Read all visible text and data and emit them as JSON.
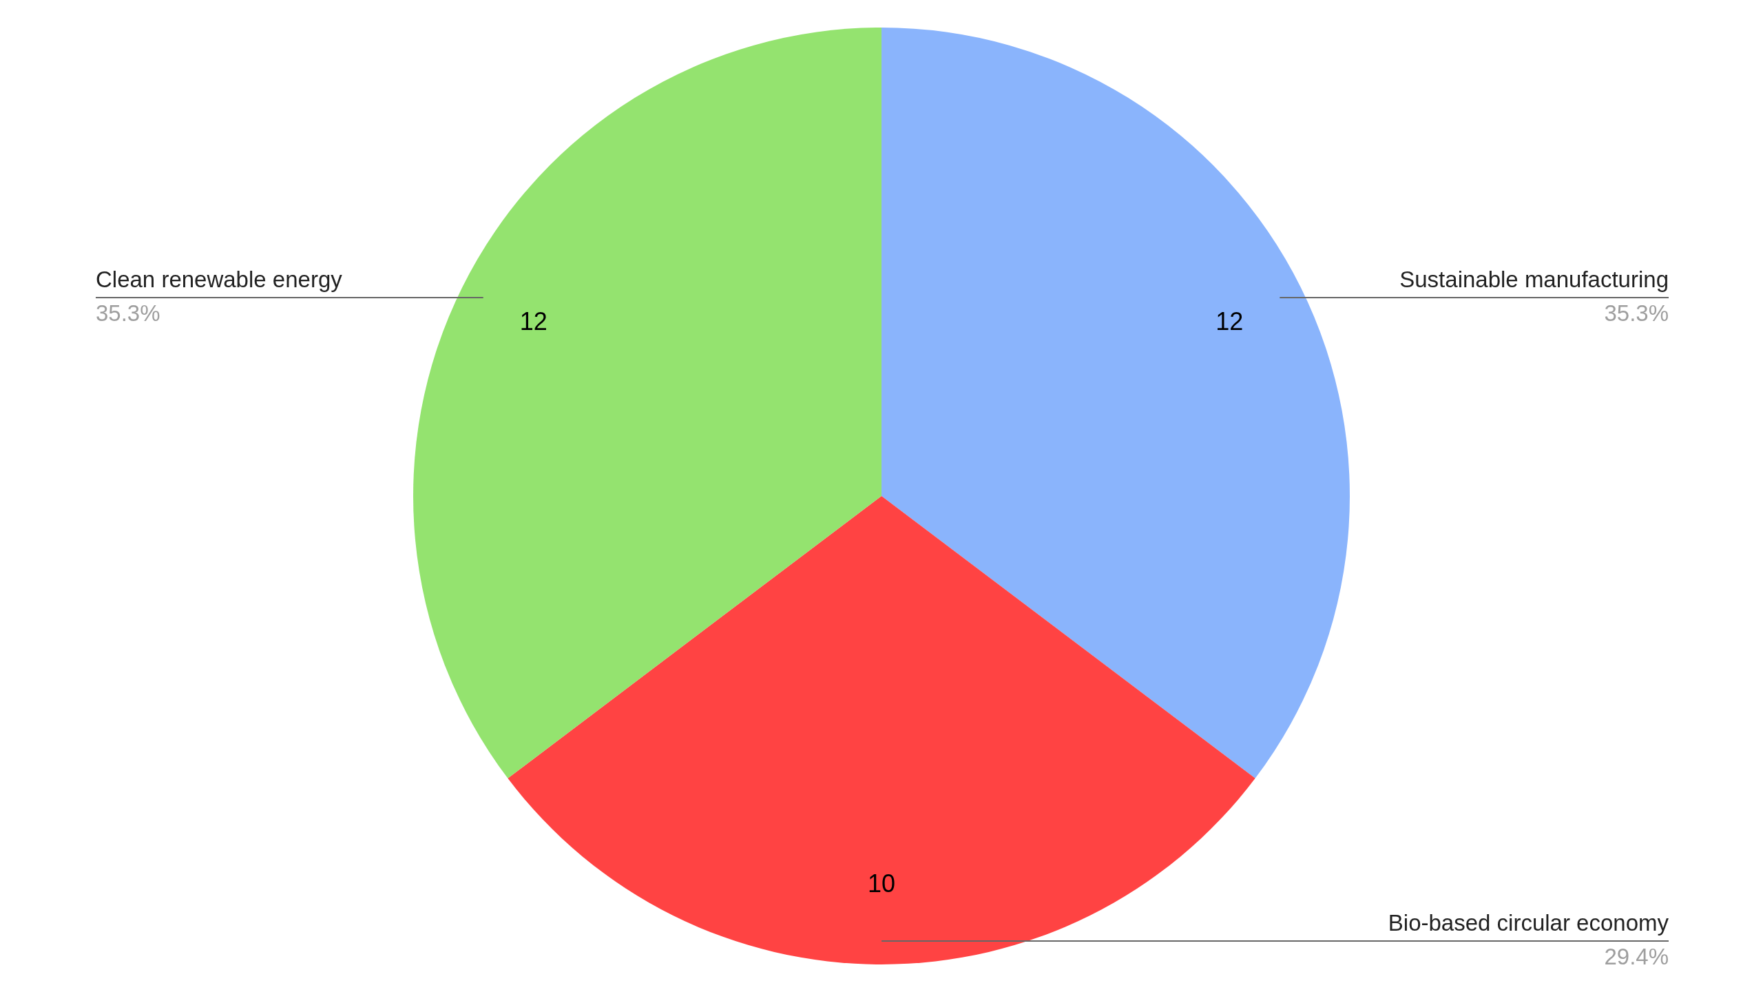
{
  "chart_data": {
    "type": "pie",
    "categories": [
      "Sustainable manufacturing",
      "Bio-based circular economy",
      "Clean renewable energy"
    ],
    "values": [
      12,
      10,
      12
    ],
    "colors": [
      "#8ab4fc",
      "#ff4343",
      "#94e36f"
    ],
    "annotations": [
      "35.3%",
      "29.4%",
      "35.3%"
    ],
    "data_labels": true
  }
}
